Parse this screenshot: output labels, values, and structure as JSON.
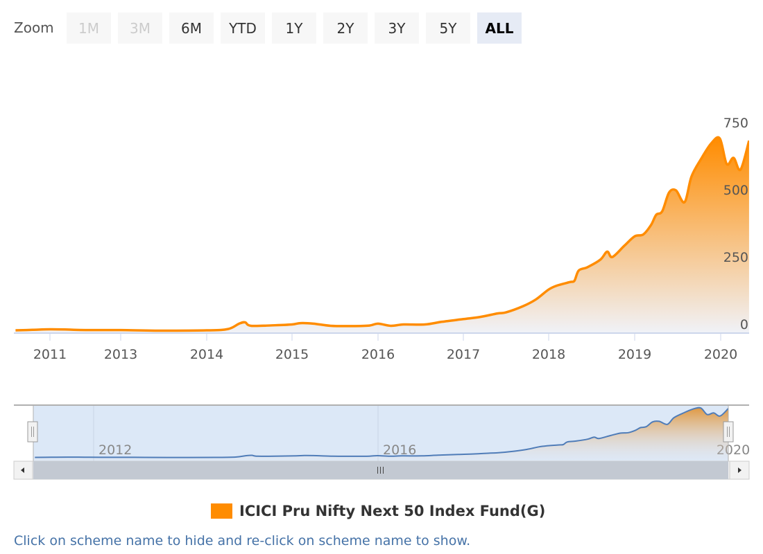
{
  "range_selector": {
    "label": "Zoom",
    "buttons": [
      {
        "label": "1M",
        "state": "disabled"
      },
      {
        "label": "3M",
        "state": "disabled"
      },
      {
        "label": "6M",
        "state": "normal"
      },
      {
        "label": "YTD",
        "state": "normal"
      },
      {
        "label": "1Y",
        "state": "normal"
      },
      {
        "label": "2Y",
        "state": "normal"
      },
      {
        "label": "3Y",
        "state": "normal"
      },
      {
        "label": "5Y",
        "state": "normal"
      },
      {
        "label": "ALL",
        "state": "active"
      }
    ]
  },
  "chart_data": {
    "type": "area",
    "title": "",
    "xlabel": "",
    "ylabel": "",
    "ylim": [
      0,
      750
    ],
    "y_ticks": [
      "0",
      "250",
      "500",
      "750"
    ],
    "x_ticks": [
      "2011",
      "2013",
      "2014",
      "2015",
      "2016",
      "2017",
      "2018",
      "2019",
      "2020"
    ],
    "navigator_ticks": [
      "2012",
      "2016",
      "2020"
    ],
    "legend_position": "bottom",
    "series": [
      {
        "name": "ICICI Pru Nifty Next 50 Index Fund(G)",
        "color": "#FF8C00",
        "points": [
          [
            2010.6,
            5
          ],
          [
            2010.8,
            7
          ],
          [
            2011,
            9
          ],
          [
            2011.5,
            8
          ],
          [
            2012,
            6
          ],
          [
            2013,
            6
          ],
          [
            2013.4,
            4
          ],
          [
            2014,
            5
          ],
          [
            2014.25,
            10
          ],
          [
            2014.38,
            30
          ],
          [
            2014.45,
            35
          ],
          [
            2014.52,
            22
          ],
          [
            2014.8,
            24
          ],
          [
            2015,
            27
          ],
          [
            2015.1,
            32
          ],
          [
            2015.25,
            30
          ],
          [
            2015.45,
            22
          ],
          [
            2015.7,
            21
          ],
          [
            2015.9,
            23
          ],
          [
            2016,
            30
          ],
          [
            2016.15,
            22
          ],
          [
            2016.3,
            27
          ],
          [
            2016.55,
            27
          ],
          [
            2016.75,
            37
          ],
          [
            2017,
            47
          ],
          [
            2017.2,
            55
          ],
          [
            2017.4,
            68
          ],
          [
            2017.5,
            72
          ],
          [
            2017.7,
            95
          ],
          [
            2017.85,
            120
          ],
          [
            2018,
            157
          ],
          [
            2018.1,
            172
          ],
          [
            2018.25,
            185
          ],
          [
            2018.3,
            190
          ],
          [
            2018.35,
            228
          ],
          [
            2018.45,
            240
          ],
          [
            2018.6,
            268
          ],
          [
            2018.68,
            298
          ],
          [
            2018.74,
            278
          ],
          [
            2018.88,
            320
          ],
          [
            2019,
            355
          ],
          [
            2019.1,
            362
          ],
          [
            2019.19,
            397
          ],
          [
            2019.25,
            435
          ],
          [
            2019.32,
            448
          ],
          [
            2019.4,
            518
          ],
          [
            2019.48,
            526
          ],
          [
            2019.58,
            482
          ],
          [
            2019.66,
            577
          ],
          [
            2019.77,
            642
          ],
          [
            2019.89,
            701
          ],
          [
            2019.99,
            719
          ],
          [
            2020.07,
            624
          ],
          [
            2020.15,
            647
          ],
          [
            2020.23,
            603
          ],
          [
            2020.33,
            711
          ]
        ]
      }
    ]
  },
  "footer": {
    "note": "Click on scheme name to hide and re-click on scheme name to show."
  }
}
